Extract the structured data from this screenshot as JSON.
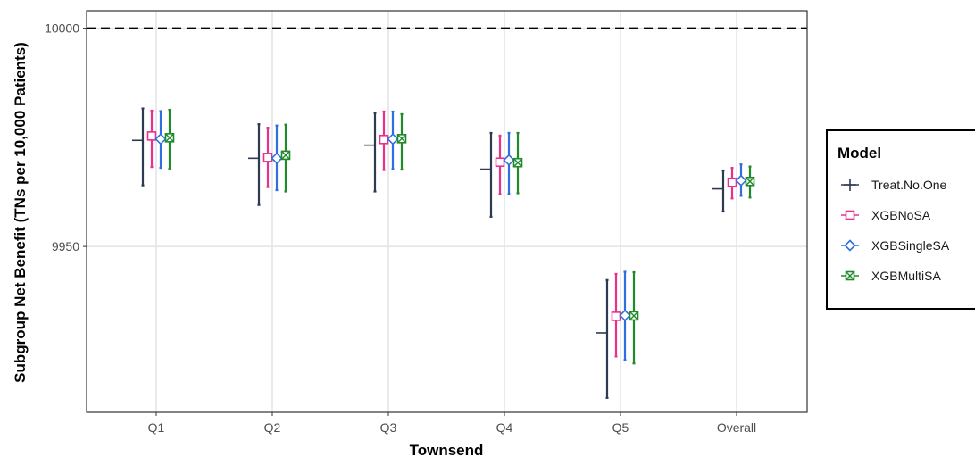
{
  "chart_data": {
    "type": "scatter",
    "title": "",
    "xlabel": "Townsend",
    "ylabel": "Subgroup Net Benefit (TNs per 10,000 Patients)",
    "categories": [
      "Q1",
      "Q2",
      "Q3",
      "Q4",
      "Q5",
      "Overall"
    ],
    "ylim": [
      9912,
      10004
    ],
    "yticks": [
      9950,
      10000
    ],
    "reference_line": 10000,
    "grid": true,
    "legend": {
      "title": "Model",
      "position": "right"
    },
    "series": [
      {
        "name": "Treat.No.One",
        "color": "#2e3a4f",
        "marker": "plus",
        "values": [
          9974.3,
          9970.2,
          9973.2,
          9967.7,
          9930.2,
          9963.2
        ],
        "lower": [
          9964.0,
          9959.5,
          9962.6,
          9956.8,
          9915.3,
          9958.0
        ],
        "upper": [
          9981.6,
          9978.0,
          9980.6,
          9976.0,
          9942.3,
          9967.4
        ]
      },
      {
        "name": "XGBNoSA",
        "color": "#e8308c",
        "marker": "square",
        "values": [
          9975.3,
          9970.4,
          9974.5,
          9969.3,
          9934.0,
          9964.7
        ],
        "lower": [
          9968.2,
          9963.6,
          9967.5,
          9962.0,
          9924.8,
          9961.0
        ],
        "upper": [
          9981.1,
          9977.2,
          9980.9,
          9975.4,
          9943.7,
          9968.0
        ]
      },
      {
        "name": "XGBSingleSA",
        "color": "#2f6fe0",
        "marker": "diamond",
        "values": [
          9974.6,
          9970.2,
          9974.6,
          9969.8,
          9934.2,
          9965.1
        ],
        "lower": [
          9968.0,
          9962.9,
          9967.7,
          9962.0,
          9924.0,
          9961.6
        ],
        "upper": [
          9981.0,
          9977.7,
          9980.9,
          9976.0,
          9944.2,
          9968.8
        ]
      },
      {
        "name": "XGBMultiSA",
        "color": "#1e8a2a",
        "marker": "boxx",
        "values": [
          9974.9,
          9970.9,
          9974.7,
          9969.2,
          9934.1,
          9964.9
        ],
        "lower": [
          9967.8,
          9962.6,
          9967.6,
          9962.2,
          9923.2,
          9961.2
        ],
        "upper": [
          9981.3,
          9977.9,
          9980.3,
          9976.0,
          9944.1,
          9968.3
        ]
      }
    ]
  }
}
